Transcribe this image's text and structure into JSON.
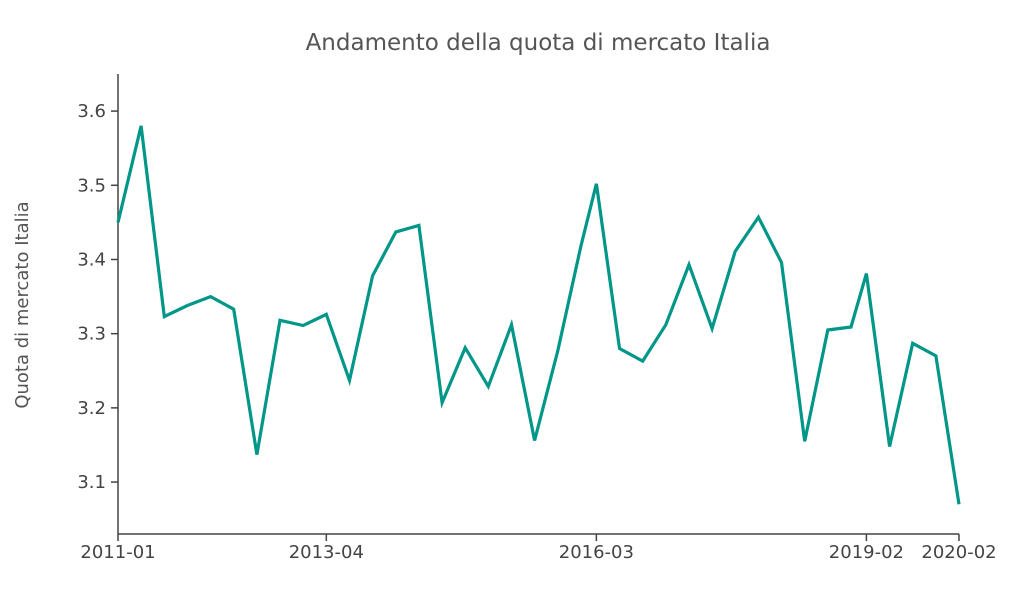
{
  "chart_data": {
    "type": "line",
    "title": "Andamento della quota di mercato Italia",
    "xlabel": "",
    "ylabel": "Quota di mercato Italia",
    "x_ticks": [
      "2011-01",
      "2013-04",
      "2016-03",
      "2019-02",
      "2020-02"
    ],
    "y_ticks": [
      3.1,
      3.2,
      3.3,
      3.4,
      3.5,
      3.6
    ],
    "ylim": [
      3.03,
      3.65
    ],
    "grid": false,
    "legend": "none",
    "series": [
      {
        "color": "#009688",
        "points": [
          {
            "x": "2011-01",
            "y": 3.45
          },
          {
            "x": "2011-04",
            "y": 3.58
          },
          {
            "x": "2011-07",
            "y": 3.323
          },
          {
            "x": "2011-10",
            "y": 3.338
          },
          {
            "x": "2012-01",
            "y": 3.35
          },
          {
            "x": "2012-04",
            "y": 3.333
          },
          {
            "x": "2012-07",
            "y": 3.137
          },
          {
            "x": "2012-10",
            "y": 3.318
          },
          {
            "x": "2013-01",
            "y": 3.311
          },
          {
            "x": "2013-04",
            "y": 3.326
          },
          {
            "x": "2013-07",
            "y": 3.237
          },
          {
            "x": "2013-10",
            "y": 3.378
          },
          {
            "x": "2014-01",
            "y": 3.437
          },
          {
            "x": "2014-04",
            "y": 3.446
          },
          {
            "x": "2014-07",
            "y": 3.207
          },
          {
            "x": "2014-10",
            "y": 3.281
          },
          {
            "x": "2015-01",
            "y": 3.229
          },
          {
            "x": "2015-04",
            "y": 3.312
          },
          {
            "x": "2015-07",
            "y": 3.156
          },
          {
            "x": "2015-10",
            "y": 3.277
          },
          {
            "x": "2016-01",
            "y": 3.418
          },
          {
            "x": "2016-03",
            "y": 3.502
          },
          {
            "x": "2016-06",
            "y": 3.28
          },
          {
            "x": "2016-09",
            "y": 3.263
          },
          {
            "x": "2016-12",
            "y": 3.312
          },
          {
            "x": "2017-03",
            "y": 3.393
          },
          {
            "x": "2017-06",
            "y": 3.307
          },
          {
            "x": "2017-09",
            "y": 3.411
          },
          {
            "x": "2017-12",
            "y": 3.457
          },
          {
            "x": "2018-03",
            "y": 3.396
          },
          {
            "x": "2018-06",
            "y": 3.155
          },
          {
            "x": "2018-09",
            "y": 3.305
          },
          {
            "x": "2018-12",
            "y": 3.309
          },
          {
            "x": "2019-02",
            "y": 3.381
          },
          {
            "x": "2019-05",
            "y": 3.148
          },
          {
            "x": "2019-08",
            "y": 3.287
          },
          {
            "x": "2019-11",
            "y": 3.27
          },
          {
            "x": "2020-02",
            "y": 3.07
          }
        ]
      }
    ]
  }
}
